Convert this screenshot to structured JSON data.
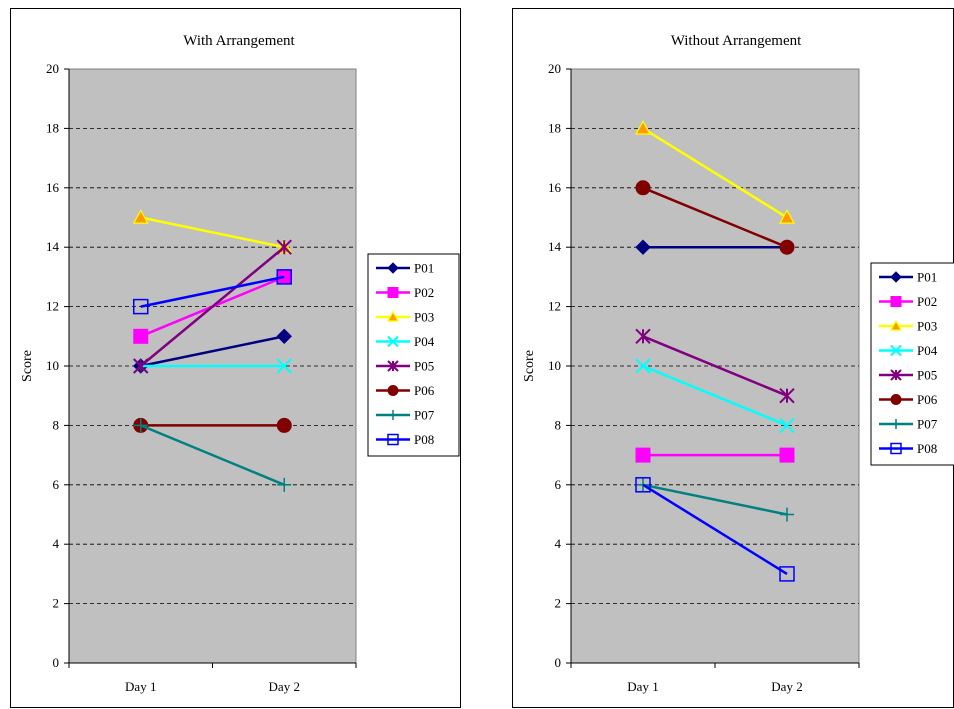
{
  "chart_data": [
    {
      "type": "line",
      "title": "With Arrangement",
      "ylabel": "Score",
      "xlabel": "",
      "categories": [
        "Day 1",
        "Day 2"
      ],
      "ylim": [
        0,
        20
      ],
      "yticks": [
        0,
        2,
        4,
        6,
        8,
        10,
        12,
        14,
        16,
        18,
        20
      ],
      "grid": "dashed horizontal",
      "plot_background": "#c0c0c0",
      "legend_position": "right",
      "series": [
        {
          "name": "P01",
          "values": [
            10,
            11
          ],
          "color": "#000080",
          "marker": "diamond"
        },
        {
          "name": "P02",
          "values": [
            11,
            13
          ],
          "color": "#ff00ff",
          "marker": "square"
        },
        {
          "name": "P03",
          "values": [
            15,
            14
          ],
          "color": "#ffff00",
          "marker": "triangle"
        },
        {
          "name": "P04",
          "values": [
            10,
            10
          ],
          "color": "#00ffff",
          "marker": "x"
        },
        {
          "name": "P05",
          "values": [
            10,
            14
          ],
          "color": "#800080",
          "marker": "star"
        },
        {
          "name": "P06",
          "values": [
            8,
            8
          ],
          "color": "#800000",
          "marker": "circle"
        },
        {
          "name": "P07",
          "values": [
            8,
            6
          ],
          "color": "#008080",
          "marker": "plus"
        },
        {
          "name": "P08",
          "values": [
            12,
            13
          ],
          "color": "#0000ff",
          "marker": "open-square"
        }
      ]
    },
    {
      "type": "line",
      "title": "Without Arrangement",
      "ylabel": "Score",
      "xlabel": "",
      "categories": [
        "Day 1",
        "Day 2"
      ],
      "ylim": [
        0,
        20
      ],
      "yticks": [
        0,
        2,
        4,
        6,
        8,
        10,
        12,
        14,
        16,
        18,
        20
      ],
      "grid": "dashed horizontal",
      "plot_background": "#c0c0c0",
      "legend_position": "right",
      "series": [
        {
          "name": "P01",
          "values": [
            14,
            14
          ],
          "color": "#000080",
          "marker": "diamond"
        },
        {
          "name": "P02",
          "values": [
            7,
            7
          ],
          "color": "#ff00ff",
          "marker": "square"
        },
        {
          "name": "P03",
          "values": [
            18,
            15
          ],
          "color": "#ffff00",
          "marker": "triangle"
        },
        {
          "name": "P04",
          "values": [
            10,
            8
          ],
          "color": "#00ffff",
          "marker": "x"
        },
        {
          "name": "P05",
          "values": [
            11,
            9
          ],
          "color": "#800080",
          "marker": "star"
        },
        {
          "name": "P06",
          "values": [
            16,
            14
          ],
          "color": "#800000",
          "marker": "circle"
        },
        {
          "name": "P07",
          "values": [
            6,
            5
          ],
          "color": "#008080",
          "marker": "plus"
        },
        {
          "name": "P08",
          "values": [
            6,
            3
          ],
          "color": "#0000ff",
          "marker": "open-square"
        }
      ]
    }
  ]
}
